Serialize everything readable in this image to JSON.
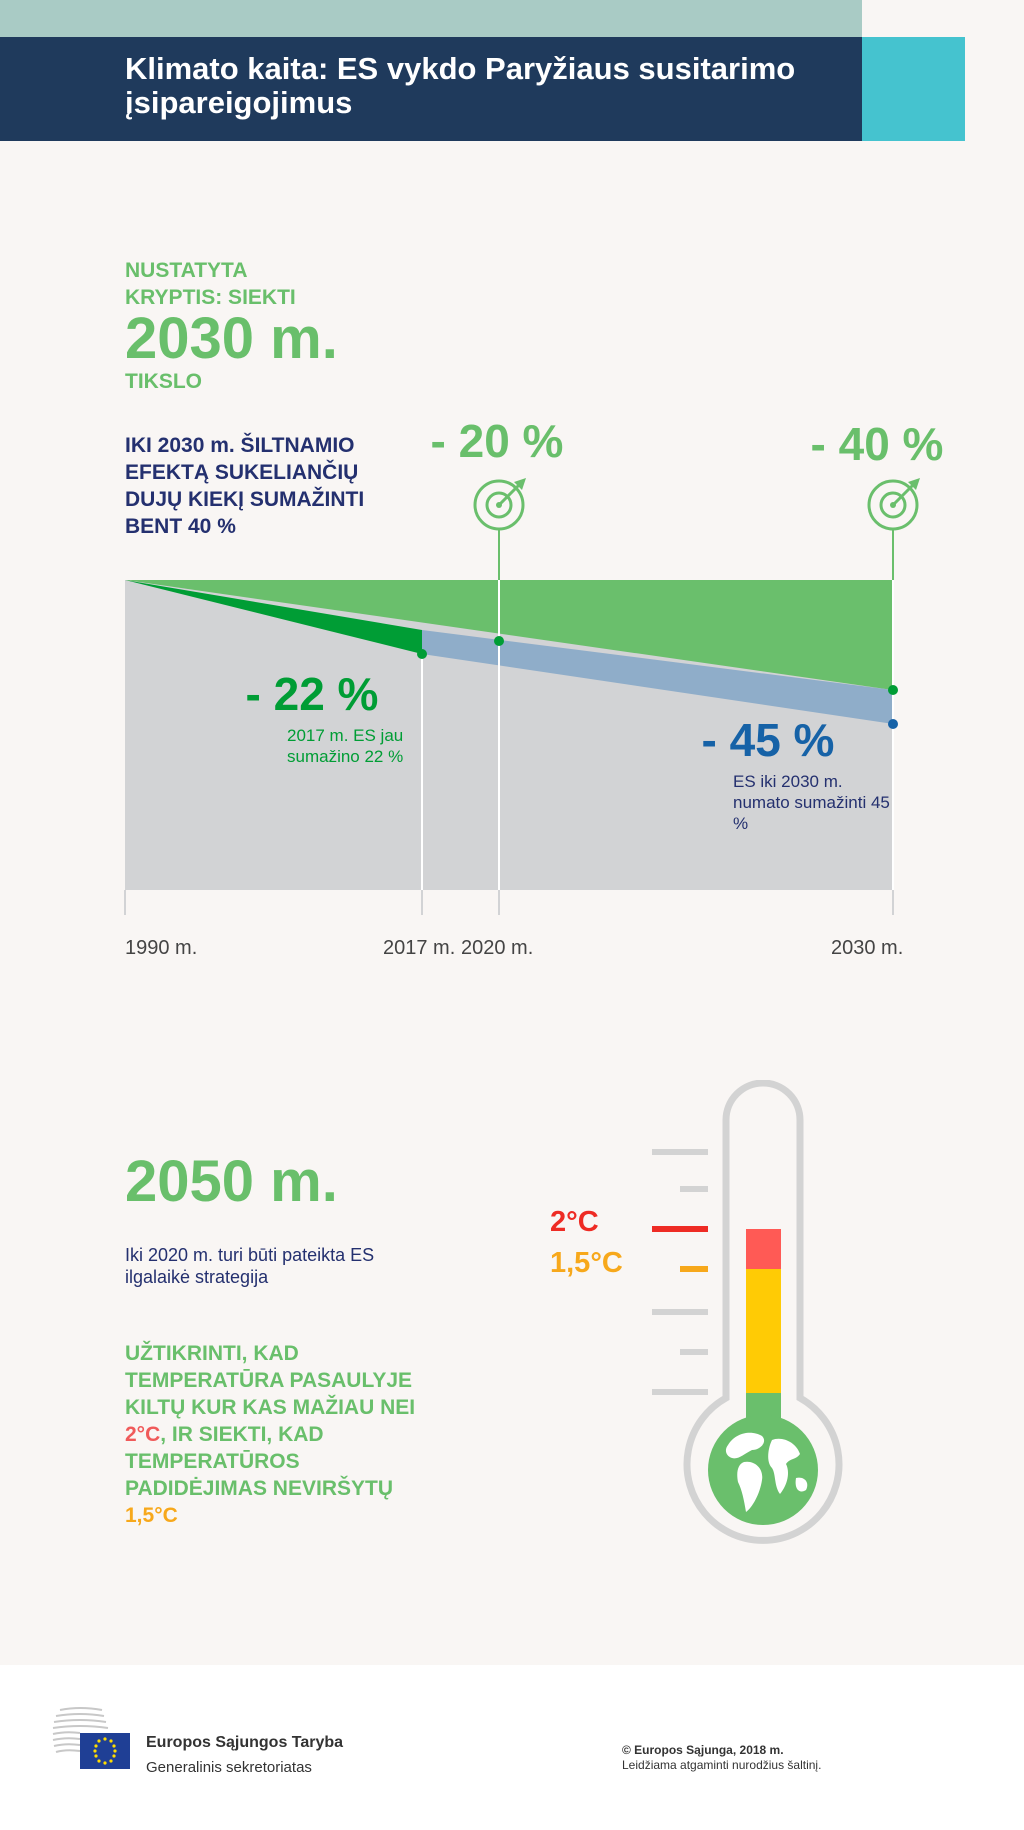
{
  "header": {
    "title": "Klimato kaita: ES vykdo Paryžiaus susitarimo įsipareigojimus"
  },
  "goal": {
    "label_line1": "NUSTATYTA",
    "label_line2": "KRYPTIS: SIEKTI",
    "year": "2030 m.",
    "suffix": "TIKSLO",
    "description": "IKI 2030 m. ŠILTNAMIO EFEKTĄ SUKELIANČIŲ DUJŲ KIEKĮ SUMAŽINTI BENT 40 %"
  },
  "chart_data": {
    "type": "area",
    "x": [
      1990,
      2017,
      2020,
      2030
    ],
    "x_tick_labels": [
      "1990 m.",
      "2017 m.",
      "2020 m.",
      "2030 m."
    ],
    "targets": [
      {
        "year": 2020,
        "label": "- 20 %",
        "value": -20
      },
      {
        "year": 2030,
        "label": "- 40 %",
        "value": -40
      }
    ],
    "achieved": {
      "year": 2017,
      "label": "- 22 %",
      "value": -22,
      "note": "2017 m. ES jau sumažino 22 %"
    },
    "projected": {
      "year": 2030,
      "label": "- 45 %",
      "value": -45,
      "note": "ES iki 2030 m. numato sumažinti 45 %"
    },
    "colors": {
      "target": "#6abf6c",
      "achieved": "#009d35",
      "projected": "#8fadc9",
      "baseline": "#d2d3d5",
      "projected_text": "#1662a7",
      "note_text": "#24306f"
    }
  },
  "section2050": {
    "year": "2050 m.",
    "strategy": "Iki 2020 m. turi būti pateikta ES ilgalaikė strategija",
    "pledge_part1": "UŽTIKRINTI, KAD TEMPERATŪRA PASAULYJE KILTŲ KUR KAS MAŽIAU NEI ",
    "pledge_2c": "2°C",
    "pledge_part2": ", IR SIEKTI, KAD TEMPERATŪROS PADIDĖJIMAS NEVIRŠYTŲ ",
    "pledge_15c": "1,5°C"
  },
  "thermometer": {
    "label_2c": "2°C",
    "label_15c": "1,5°C",
    "colors": {
      "red": "#ff5a55",
      "yellow": "#ffcb05",
      "green": "#6abf6c",
      "frame": "#d3d3d3"
    }
  },
  "footer": {
    "council_name": "Europos Sąjungos Taryba",
    "council_sub": "Generalinis sekretoriatas",
    "copyright": "© Europos Sąjunga, 2018 m.",
    "permission": "Leidžiama atgaminti nurodžius šaltinį."
  }
}
